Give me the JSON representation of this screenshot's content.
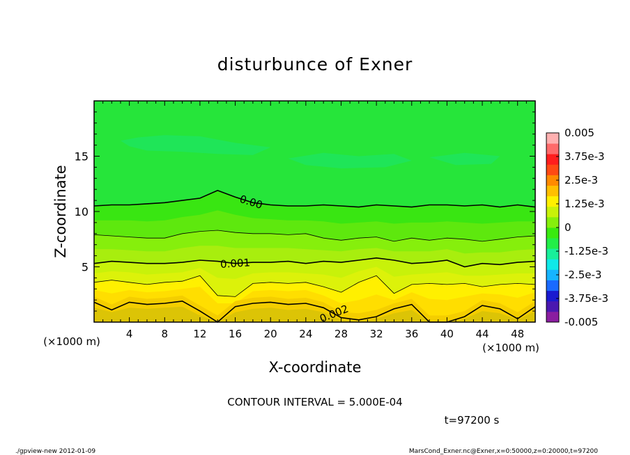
{
  "chart_data": {
    "type": "heatmap",
    "title": "disturbunce of Exner",
    "xlabel": "X-coordinate",
    "ylabel": "Z-coordinate",
    "x_unit": "(×1000 m)",
    "y_unit": "(×1000 m)",
    "xlim": [
      0,
      50
    ],
    "ylim": [
      0,
      20
    ],
    "x_ticks": [
      4,
      8,
      12,
      16,
      20,
      24,
      28,
      32,
      36,
      40,
      44,
      48
    ],
    "y_ticks": [
      5,
      10,
      15
    ],
    "colorbar": {
      "labels": [
        "0.005",
        "3.75e-3",
        "2.5e-3",
        "1.25e-3",
        "0",
        "-1.25e-3",
        "-2.5e-3",
        "-3.75e-3",
        "-0.005"
      ],
      "range": [
        -0.005,
        0.005
      ],
      "colors": [
        "#8a1ea0",
        "#4a18b0",
        "#1a1ad0",
        "#1a6aff",
        "#16b4ff",
        "#10e8e8",
        "#18ef9a",
        "#22ee48",
        "#39ea10",
        "#86ef0c",
        "#c8f20a",
        "#fff000",
        "#ffbf00",
        "#ff8a00",
        "#ff4a14",
        "#ff1e1e",
        "#ff6a6a",
        "#ffb0b0"
      ]
    },
    "contour_interval_text": "CONTOUR INTERVAL = 5.000E-04",
    "contours": [
      {
        "level": 0.0,
        "label": "0.00",
        "label_x": 17.8,
        "z": [
          10.5,
          10.6,
          10.6,
          10.7,
          10.8,
          11.0,
          11.2,
          11.9,
          11.3,
          10.8,
          10.6,
          10.5,
          10.5,
          10.6,
          10.5,
          10.4,
          10.6,
          10.5,
          10.4,
          10.6,
          10.6,
          10.5,
          10.6,
          10.4,
          10.6,
          10.4
        ]
      },
      {
        "level": 0.0005,
        "label": "",
        "z": [
          7.9,
          7.8,
          7.7,
          7.6,
          7.6,
          8.0,
          8.2,
          8.3,
          8.1,
          8.0,
          8.0,
          7.9,
          8.0,
          7.6,
          7.4,
          7.6,
          7.7,
          7.3,
          7.6,
          7.4,
          7.6,
          7.5,
          7.3,
          7.5,
          7.7,
          7.8
        ]
      },
      {
        "level": 0.001,
        "label": "0.001",
        "label_x": 16.0,
        "z": [
          5.3,
          5.5,
          5.4,
          5.3,
          5.3,
          5.4,
          5.6,
          5.5,
          5.3,
          5.4,
          5.4,
          5.5,
          5.3,
          5.5,
          5.4,
          5.6,
          5.8,
          5.6,
          5.3,
          5.4,
          5.6,
          5.0,
          5.3,
          5.2,
          5.4,
          5.5
        ]
      },
      {
        "level": 0.0015,
        "label": "",
        "z": [
          3.6,
          3.8,
          3.6,
          3.4,
          3.6,
          3.7,
          4.2,
          2.4,
          2.3,
          3.5,
          3.6,
          3.5,
          3.6,
          3.2,
          2.7,
          3.6,
          4.2,
          2.6,
          3.4,
          3.5,
          3.4,
          3.5,
          3.2,
          3.4,
          3.5,
          3.4
        ]
      },
      {
        "level": 0.002,
        "label": "0.002",
        "label_x": 27.2,
        "z": [
          1.8,
          1.1,
          1.8,
          1.6,
          1.7,
          1.9,
          1.0,
          0.0,
          1.4,
          1.7,
          1.8,
          1.6,
          1.7,
          1.3,
          0.4,
          0.2,
          0.5,
          1.2,
          1.6,
          0.0,
          0.0,
          0.5,
          1.5,
          1.2,
          0.3,
          1.4
        ]
      }
    ],
    "fill_bands": [
      {
        "color": "#dcc406",
        "z": [
          1.3,
          0.9,
          1.3,
          1.2,
          1.3,
          1.4,
          0.6,
          0.0,
          0.9,
          1.2,
          1.3,
          1.1,
          1.2,
          0.9,
          0.2,
          0.1,
          0.3,
          0.8,
          1.1,
          0.0,
          0.0,
          0.3,
          1.0,
          0.8,
          0.2,
          1.0
        ]
      },
      {
        "color": "#f4ce00",
        "z": [
          2.3,
          1.6,
          2.3,
          2.1,
          2.2,
          2.4,
          1.5,
          0.6,
          1.9,
          2.2,
          2.3,
          2.1,
          2.2,
          1.8,
          0.9,
          0.8,
          1.1,
          1.7,
          2.1,
          0.6,
          0.6,
          1.0,
          2.0,
          1.7,
          0.9,
          1.9
        ]
      },
      {
        "color": "#ffde00",
        "z": [
          2.9,
          2.6,
          2.9,
          2.7,
          2.8,
          3.0,
          3.2,
          1.7,
          1.7,
          2.8,
          2.9,
          2.8,
          2.9,
          2.4,
          1.7,
          2.0,
          2.5,
          2.0,
          2.7,
          2.1,
          2.0,
          2.3,
          2.6,
          2.5,
          2.2,
          2.7
        ]
      },
      {
        "color": "#fff000",
        "z": [
          3.6,
          3.8,
          3.6,
          3.4,
          3.6,
          3.7,
          4.2,
          2.4,
          2.3,
          3.5,
          3.6,
          3.5,
          3.6,
          3.2,
          2.7,
          3.6,
          4.2,
          2.6,
          3.4,
          3.5,
          3.4,
          3.5,
          3.2,
          3.4,
          3.5,
          3.4
        ]
      },
      {
        "color": "#dcf20a",
        "z": [
          4.4,
          4.6,
          4.5,
          4.3,
          4.4,
          4.5,
          4.9,
          4.0,
          3.9,
          4.4,
          4.5,
          4.5,
          4.4,
          4.3,
          4.0,
          4.6,
          5.0,
          4.1,
          4.3,
          4.4,
          4.5,
          4.2,
          4.2,
          4.3,
          4.4,
          4.4
        ]
      },
      {
        "color": "#c8f20a",
        "z": [
          5.3,
          5.5,
          5.4,
          5.3,
          5.3,
          5.4,
          5.6,
          5.5,
          5.3,
          5.4,
          5.4,
          5.5,
          5.3,
          5.5,
          5.4,
          5.6,
          5.8,
          5.6,
          5.3,
          5.4,
          5.6,
          5.0,
          5.3,
          5.2,
          5.4,
          5.5
        ]
      },
      {
        "color": "#a8ee0e",
        "z": [
          6.6,
          6.6,
          6.5,
          6.4,
          6.4,
          6.7,
          6.9,
          6.9,
          6.7,
          6.7,
          6.7,
          6.7,
          6.6,
          6.5,
          6.4,
          6.6,
          6.7,
          6.4,
          6.4,
          6.4,
          6.6,
          6.2,
          6.3,
          6.3,
          6.5,
          6.6
        ]
      },
      {
        "color": "#86ef0c",
        "z": [
          7.9,
          7.8,
          7.7,
          7.6,
          7.6,
          8.0,
          8.2,
          8.3,
          8.1,
          8.0,
          8.0,
          7.9,
          8.0,
          7.6,
          7.4,
          7.6,
          7.7,
          7.3,
          7.6,
          7.4,
          7.6,
          7.5,
          7.3,
          7.5,
          7.7,
          7.8
        ]
      },
      {
        "color": "#5ee80e",
        "z": [
          9.2,
          9.2,
          9.2,
          9.1,
          9.2,
          9.5,
          9.7,
          10.1,
          9.7,
          9.4,
          9.3,
          9.2,
          9.2,
          9.1,
          8.9,
          9.0,
          9.1,
          8.9,
          9.0,
          9.0,
          9.1,
          9.0,
          8.9,
          9.0,
          9.1,
          9.1
        ]
      },
      {
        "color": "#39e612",
        "z": [
          10.5,
          10.6,
          10.6,
          10.7,
          10.8,
          11.0,
          11.2,
          11.9,
          11.3,
          10.8,
          10.6,
          10.5,
          10.5,
          10.6,
          10.5,
          10.4,
          10.6,
          10.5,
          10.4,
          10.6,
          10.6,
          10.5,
          10.6,
          10.4,
          10.6,
          10.4
        ]
      }
    ],
    "background_color": "#26e53a",
    "patch_color": "#1fe55e",
    "patches": [
      [
        [
          3,
          16.4
        ],
        [
          5,
          16.7
        ],
        [
          8,
          16.9
        ],
        [
          12,
          16.8
        ],
        [
          16,
          16.2
        ],
        [
          20,
          15.8
        ],
        [
          18,
          15.1
        ],
        [
          14,
          15.2
        ],
        [
          10,
          15.4
        ],
        [
          6,
          15.5
        ],
        [
          4,
          15.9
        ]
      ],
      [
        [
          22,
          14.8
        ],
        [
          26,
          15.3
        ],
        [
          30,
          15.0
        ],
        [
          34,
          15.2
        ],
        [
          36,
          14.6
        ],
        [
          33,
          14.0
        ],
        [
          28,
          13.9
        ],
        [
          24,
          14.2
        ]
      ],
      [
        [
          38,
          14.9
        ],
        [
          42,
          15.3
        ],
        [
          46,
          15.0
        ],
        [
          45,
          14.3
        ],
        [
          41,
          14.2
        ]
      ]
    ]
  },
  "footer": {
    "time_text": "t=97200 s",
    "left_text": "./gpview-new   2012-01-09",
    "right_text": "MarsCond_Exner.nc@Exner,x=0:50000,z=0:20000,t=97200"
  }
}
